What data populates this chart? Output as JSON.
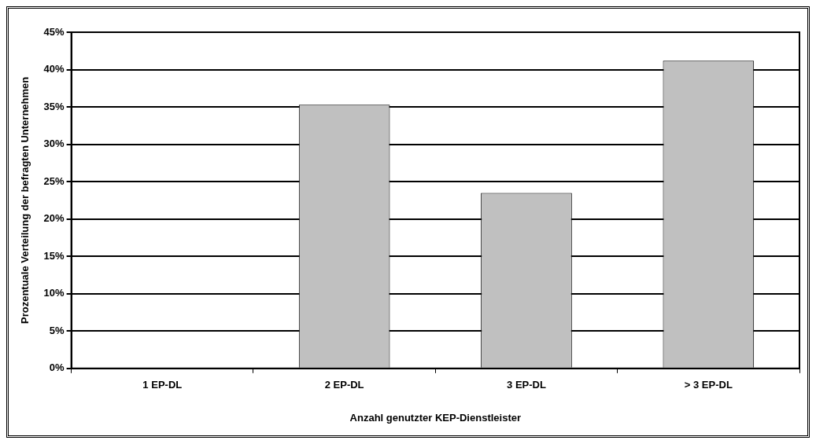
{
  "chart_data": {
    "type": "bar",
    "xlabel": "Anzahl genutzter KEP-Dienstleister",
    "ylabel": "Prozentuale Verteilung der befragten Unternehmen",
    "categories": [
      "1 EP-DL",
      "2 EP-DL",
      "3 EP-DL",
      "> 3 EP-DL"
    ],
    "values": [
      0,
      35.3,
      23.5,
      41.2
    ],
    "color": "#c0c0c0",
    "ylim": [
      0,
      45
    ],
    "yticks": [
      {
        "value": 0,
        "label": "0%"
      },
      {
        "value": 5,
        "label": "5%"
      },
      {
        "value": 10,
        "label": "10%"
      },
      {
        "value": 15,
        "label": "15%"
      },
      {
        "value": 20,
        "label": "20%"
      },
      {
        "value": 25,
        "label": "25%"
      },
      {
        "value": 30,
        "label": "30%"
      },
      {
        "value": 35,
        "label": "35%"
      },
      {
        "value": 40,
        "label": "40%"
      },
      {
        "value": 45,
        "label": "45%"
      }
    ],
    "grid": "y",
    "legend": false
  }
}
